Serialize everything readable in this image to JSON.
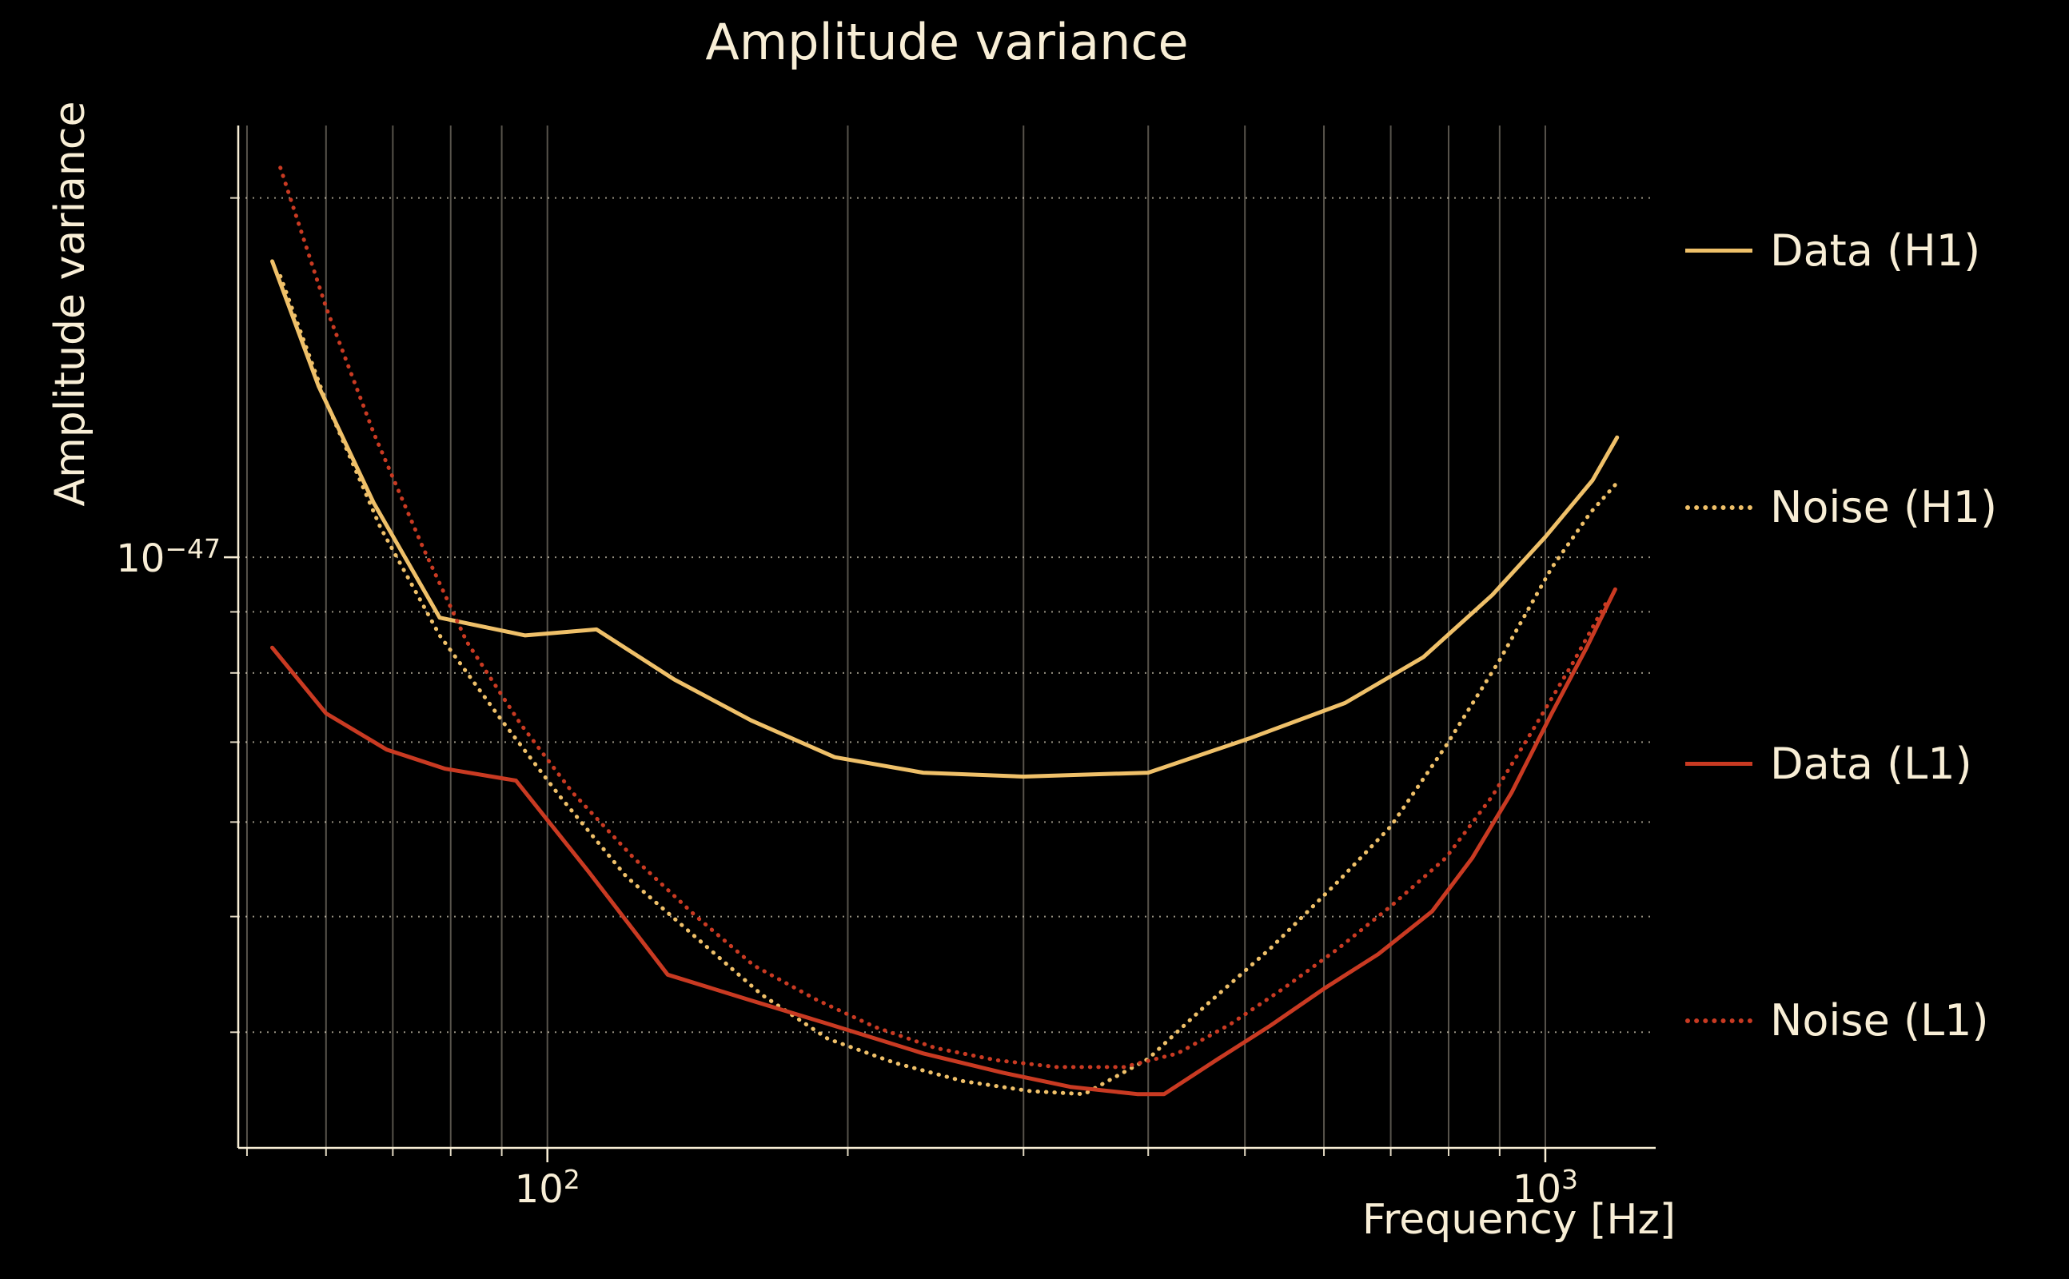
{
  "title": "Amplitude variance",
  "chart_data": {
    "type": "line",
    "title": "Amplitude variance",
    "xlabel": "Frequency [Hz]",
    "ylabel": "Amplitude variance",
    "xscale": "log",
    "yscale": "log",
    "xlim": [
      49,
      1290
    ],
    "ylim": [
      3.2e-48,
      2.3e-47
    ],
    "grid": true,
    "legend_position": "right",
    "background_color": "#000000",
    "text_color": "#f8eed6",
    "grid_color": "#f8eed6",
    "x_ticks": [
      {
        "base": "10",
        "exp": "2",
        "value": 100
      },
      {
        "base": "10",
        "exp": "3",
        "value": 1000
      }
    ],
    "y_ticks": [
      {
        "base": "10",
        "exp": "−47",
        "value": 1e-47
      }
    ],
    "series": [
      {
        "name": "Data (H1)",
        "id": "data-h1",
        "color": "#efc069",
        "style": "solid",
        "points": [
          [
            53,
            1.77e-47
          ],
          [
            59,
            1.39e-47
          ],
          [
            67,
            1.11e-47
          ],
          [
            78,
            8.9e-48
          ],
          [
            95,
            8.6e-48
          ],
          [
            112,
            8.7e-48
          ],
          [
            134,
            7.9e-48
          ],
          [
            160,
            7.3e-48
          ],
          [
            194,
            6.8e-48
          ],
          [
            238,
            6.6e-48
          ],
          [
            300,
            6.55e-48
          ],
          [
            400,
            6.6e-48
          ],
          [
            505,
            7.05e-48
          ],
          [
            630,
            7.55e-48
          ],
          [
            755,
            8.25e-48
          ],
          [
            885,
            9.3e-48
          ],
          [
            1000,
            1.04e-47
          ],
          [
            1115,
            1.16e-47
          ],
          [
            1180,
            1.26e-47
          ]
        ]
      },
      {
        "name": "Noise (H1)",
        "id": "noise-h1",
        "color": "#efc069",
        "style": "dotted",
        "points": [
          [
            54,
            1.72e-47
          ],
          [
            60,
            1.35e-47
          ],
          [
            68,
            1.06e-47
          ],
          [
            78,
            8.6e-48
          ],
          [
            90,
            7.3e-48
          ],
          [
            103,
            6.3e-48
          ],
          [
            120,
            5.4e-48
          ],
          [
            141,
            4.8e-48
          ],
          [
            164,
            4.3e-48
          ],
          [
            191,
            3.95e-48
          ],
          [
            223,
            3.77e-48
          ],
          [
            261,
            3.64e-48
          ],
          [
            305,
            3.57e-48
          ],
          [
            345,
            3.55e-48
          ],
          [
            400,
            3.8e-48
          ],
          [
            455,
            4.2e-48
          ],
          [
            530,
            4.7e-48
          ],
          [
            620,
            5.35e-48
          ],
          [
            700,
            5.95e-48
          ],
          [
            795,
            6.95e-48
          ],
          [
            900,
            8.2e-48
          ],
          [
            1015,
            9.8e-48
          ],
          [
            1110,
            1.09e-47
          ],
          [
            1175,
            1.15e-47
          ]
        ]
      },
      {
        "name": "Data (L1)",
        "id": "data-l1",
        "color": "#c93a22",
        "style": "solid",
        "points": [
          [
            53,
            8.4e-48
          ],
          [
            60,
            7.4e-48
          ],
          [
            69,
            6.9e-48
          ],
          [
            79,
            6.65e-48
          ],
          [
            93,
            6.5e-48
          ],
          [
            110,
            5.45e-48
          ],
          [
            132,
            4.47e-48
          ],
          [
            159,
            4.26e-48
          ],
          [
            192,
            4.06e-48
          ],
          [
            238,
            3.84e-48
          ],
          [
            286,
            3.7e-48
          ],
          [
            334,
            3.6e-48
          ],
          [
            390,
            3.55e-48
          ],
          [
            415,
            3.55e-48
          ],
          [
            470,
            3.8e-48
          ],
          [
            530,
            4.05e-48
          ],
          [
            600,
            4.35e-48
          ],
          [
            680,
            4.65e-48
          ],
          [
            770,
            5.05e-48
          ],
          [
            845,
            5.6e-48
          ],
          [
            925,
            6.35e-48
          ],
          [
            1015,
            7.4e-48
          ],
          [
            1100,
            8.4e-48
          ],
          [
            1175,
            9.4e-48
          ]
        ]
      },
      {
        "name": "Noise (L1)",
        "id": "noise-l1",
        "color": "#c93a22",
        "style": "dotted",
        "points": [
          [
            54,
            2.12e-47
          ],
          [
            60,
            1.62e-47
          ],
          [
            67,
            1.27e-47
          ],
          [
            75,
            1.02e-47
          ],
          [
            83,
            8.5e-48
          ],
          [
            94,
            7.25e-48
          ],
          [
            106,
            6.35e-48
          ],
          [
            122,
            5.6e-48
          ],
          [
            141,
            5e-48
          ],
          [
            161,
            4.55e-48
          ],
          [
            186,
            4.26e-48
          ],
          [
            213,
            4.04e-48
          ],
          [
            245,
            3.88e-48
          ],
          [
            282,
            3.79e-48
          ],
          [
            324,
            3.74e-48
          ],
          [
            378,
            3.74e-48
          ],
          [
            428,
            3.84e-48
          ],
          [
            483,
            4.06e-48
          ],
          [
            546,
            4.35e-48
          ],
          [
            620,
            4.7e-48
          ],
          [
            700,
            5.1e-48
          ],
          [
            795,
            5.6e-48
          ],
          [
            884,
            6.3e-48
          ],
          [
            970,
            7.15e-48
          ],
          [
            1065,
            8.15e-48
          ],
          [
            1150,
            9.15e-48
          ]
        ]
      }
    ]
  }
}
